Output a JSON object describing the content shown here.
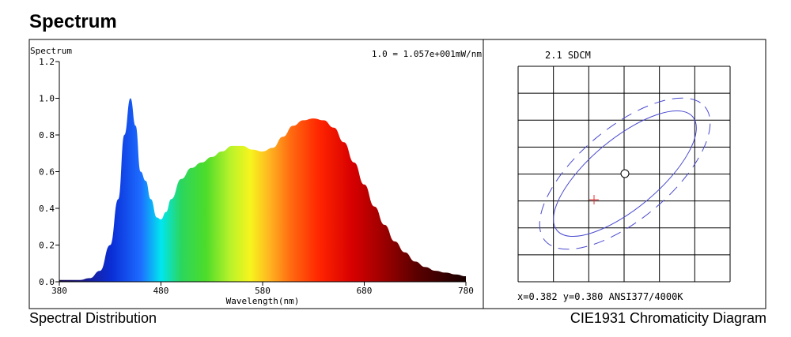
{
  "page_title": "Spectrum",
  "captions": {
    "left": "Spectral Distribution",
    "right": "CIE1931 Chromaticity Diagram"
  },
  "chart_data": [
    {
      "type": "area",
      "ylabel": "Spectrum",
      "xlabel": "Wavelength(nm)",
      "annotation": "1.0 = 1.057e+001mW/nm",
      "xlim": [
        380,
        780
      ],
      "ylim": [
        0,
        1.2
      ],
      "x_ticks": [
        380,
        480,
        580,
        680,
        780
      ],
      "y_ticks": [
        "0.0",
        "0.2",
        "0.4",
        "0.6",
        "0.8",
        "1.0",
        "1.2"
      ],
      "fill": "wavelength-color gradient",
      "points": [
        [
          380,
          0.01
        ],
        [
          400,
          0.01
        ],
        [
          410,
          0.02
        ],
        [
          420,
          0.06
        ],
        [
          430,
          0.2
        ],
        [
          438,
          0.45
        ],
        [
          444,
          0.8
        ],
        [
          450,
          1.0
        ],
        [
          455,
          0.85
        ],
        [
          460,
          0.6
        ],
        [
          465,
          0.55
        ],
        [
          470,
          0.45
        ],
        [
          476,
          0.35
        ],
        [
          480,
          0.34
        ],
        [
          485,
          0.38
        ],
        [
          490,
          0.45
        ],
        [
          500,
          0.56
        ],
        [
          510,
          0.62
        ],
        [
          520,
          0.65
        ],
        [
          530,
          0.68
        ],
        [
          540,
          0.71
        ],
        [
          550,
          0.74
        ],
        [
          560,
          0.74
        ],
        [
          570,
          0.72
        ],
        [
          580,
          0.71
        ],
        [
          590,
          0.73
        ],
        [
          600,
          0.79
        ],
        [
          610,
          0.85
        ],
        [
          620,
          0.88
        ],
        [
          630,
          0.89
        ],
        [
          640,
          0.88
        ],
        [
          650,
          0.84
        ],
        [
          660,
          0.76
        ],
        [
          670,
          0.65
        ],
        [
          680,
          0.53
        ],
        [
          690,
          0.41
        ],
        [
          700,
          0.31
        ],
        [
          710,
          0.22
        ],
        [
          720,
          0.16
        ],
        [
          730,
          0.11
        ],
        [
          740,
          0.08
        ],
        [
          750,
          0.06
        ],
        [
          760,
          0.05
        ],
        [
          770,
          0.04
        ],
        [
          780,
          0.03
        ]
      ]
    },
    {
      "type": "scatter",
      "title": "2.1 SDCM",
      "footer": "x=0.382 y=0.380 ANSI377/4000K",
      "grid": true,
      "grid_divisions": [
        6,
        8
      ],
      "marks": [
        {
          "name": "target-point",
          "shape": "circle",
          "color": "#000000"
        },
        {
          "name": "center-cross",
          "shape": "cross",
          "color": "#e03030"
        },
        {
          "name": "ellipse-inner",
          "shape": "ellipse",
          "style": "solid",
          "color": "#3333cc"
        },
        {
          "name": "ellipse-outer",
          "shape": "ellipse",
          "style": "dashed",
          "color": "#3333cc"
        }
      ]
    }
  ]
}
